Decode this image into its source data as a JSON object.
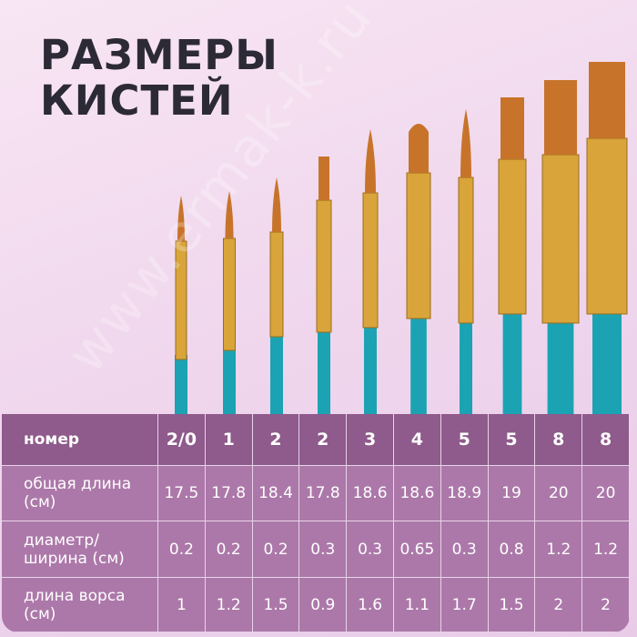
{
  "title": [
    "РАЗМЕРЫ",
    "КИСТЕЙ"
  ],
  "watermark": "www.ermak-k.ru",
  "colors": {
    "handle": "#1ba3b3",
    "ferrule": "#d9a53a",
    "bristle": "#c7742a",
    "header_row": "#8f5a8c",
    "body_row": "#ac78a9",
    "title": "#2c2a36"
  },
  "table": {
    "rows": [
      {
        "label": "номер",
        "values": [
          "2/0",
          "1",
          "2",
          "2",
          "3",
          "4",
          "5",
          "5",
          "8",
          "8"
        ]
      },
      {
        "label": "общая длина (см)",
        "values": [
          "17.5",
          "17.8",
          "18.4",
          "17.8",
          "18.6",
          "18.6",
          "18.9",
          "19",
          "20",
          "20"
        ]
      },
      {
        "label": "диаметр/ ширина (см)",
        "values": [
          "0.2",
          "0.2",
          "0.2",
          "0.3",
          "0.3",
          "0.65",
          "0.3",
          "0.8",
          "1.2",
          "1.2"
        ]
      },
      {
        "label": "длина ворса (см)",
        "values": [
          "1",
          "1.2",
          "1.5",
          "0.9",
          "1.6",
          "1.1",
          "1.7",
          "1.5",
          "2",
          "2"
        ]
      }
    ]
  },
  "brushes": [
    {
      "size": "2/0",
      "shape": "round"
    },
    {
      "size": "1",
      "shape": "round"
    },
    {
      "size": "2",
      "shape": "round"
    },
    {
      "size": "2",
      "shape": "flat"
    },
    {
      "size": "3",
      "shape": "round"
    },
    {
      "size": "4",
      "shape": "filbert"
    },
    {
      "size": "5",
      "shape": "round"
    },
    {
      "size": "5",
      "shape": "flat"
    },
    {
      "size": "8",
      "shape": "flat"
    },
    {
      "size": "8",
      "shape": "flat"
    }
  ]
}
